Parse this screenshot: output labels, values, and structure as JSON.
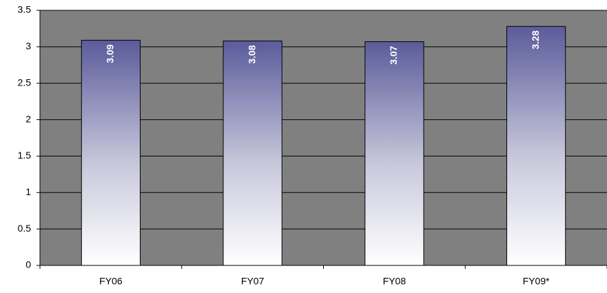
{
  "chart_data": {
    "type": "bar",
    "categories": [
      "FY06",
      "FY07",
      "FY08",
      "FY09*"
    ],
    "values": [
      3.09,
      3.08,
      3.07,
      3.28
    ],
    "color": "#5b5b9b",
    "ylim": [
      0,
      3.5
    ],
    "yticks": [
      0,
      0.5,
      1,
      1.5,
      2,
      2.5,
      3,
      3.5
    ],
    "grid": true
  }
}
